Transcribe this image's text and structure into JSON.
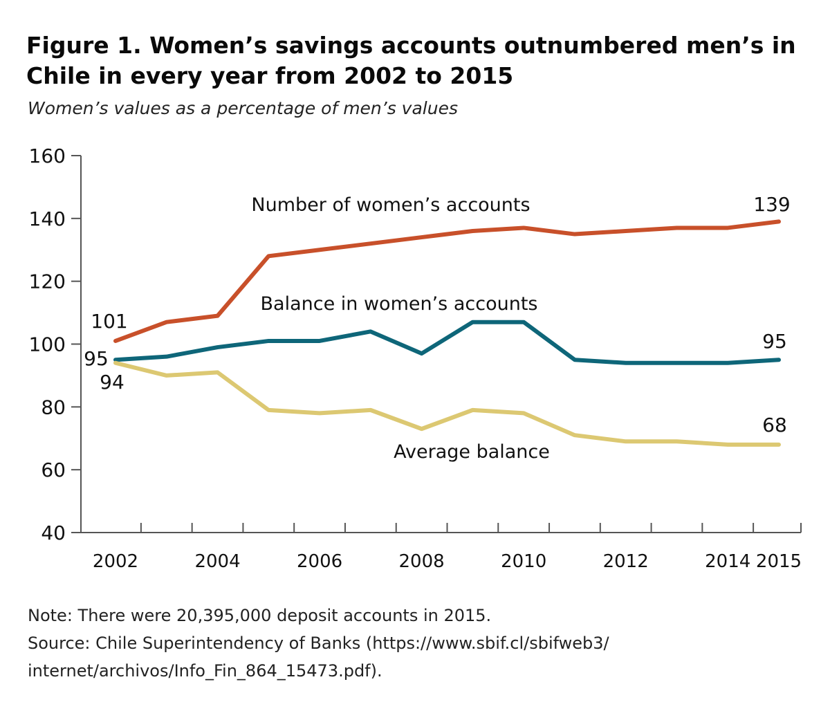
{
  "header": {
    "title": "Figure 1. Women’s savings accounts outnumbered men’s in Chile in every year from 2002 to 2015",
    "subtitle": "Women’s values as a percentage of men’s values"
  },
  "notes": {
    "note": "Note: There were 20,395,000 deposit accounts in 2015.",
    "source_line1": "Source: Chile Superintendency of Banks (https://www.sbif.cl/sbifweb3/",
    "source_line2": "internet/archivos/Info_Fin_864_15473.pdf)."
  },
  "chart_data": {
    "type": "line",
    "x": [
      2002,
      2003,
      2004,
      2005,
      2006,
      2007,
      2008,
      2009,
      2010,
      2011,
      2012,
      2013,
      2014,
      2015
    ],
    "xtick_labels": [
      "2002",
      "2004",
      "2006",
      "2008",
      "2010",
      "2012",
      "2014",
      "2015"
    ],
    "xtick_values": [
      2002,
      2004,
      2006,
      2008,
      2010,
      2012,
      2014,
      2015
    ],
    "ylim": [
      40,
      160
    ],
    "yticks": [
      40,
      60,
      80,
      100,
      120,
      140,
      160
    ],
    "grid": false,
    "series": [
      {
        "name": "Number of women’s accounts",
        "color": "#C8502A",
        "values": [
          101,
          107,
          109,
          128,
          130,
          132,
          134,
          136,
          137,
          135,
          136,
          137,
          137,
          139
        ],
        "start_label": "101",
        "end_label": "139"
      },
      {
        "name": "Balance in women’s accounts",
        "color": "#0E6679",
        "values": [
          95,
          96,
          99,
          101,
          101,
          104,
          97,
          107,
          107,
          95,
          94,
          94,
          94,
          95
        ],
        "start_label": "95",
        "end_label": "95"
      },
      {
        "name": "Average balance",
        "color": "#DCC872",
        "values": [
          94,
          90,
          91,
          79,
          78,
          79,
          73,
          79,
          78,
          71,
          69,
          69,
          68,
          68
        ],
        "start_label": "94",
        "end_label": "68"
      }
    ]
  }
}
